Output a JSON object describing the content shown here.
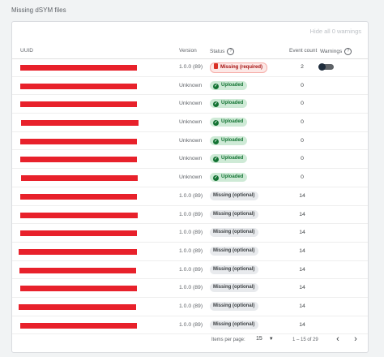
{
  "page": {
    "title": "Missing dSYM files"
  },
  "toolbar": {
    "hide_warnings_label": "Hide all 0 warnings"
  },
  "table": {
    "headers": {
      "uuid": "UUID",
      "version": "Version",
      "status": "Status",
      "event_count": "Event count",
      "warnings": "Warnings"
    },
    "rows": [
      {
        "version": "1.0.0 (89)",
        "status": "Missing (required)",
        "status_kind": "required",
        "event_count": "2",
        "has_warning_toggle": true
      },
      {
        "version": "Unknown",
        "status": "Uploaded",
        "status_kind": "uploaded",
        "event_count": "0"
      },
      {
        "version": "Unknown",
        "status": "Uploaded",
        "status_kind": "uploaded",
        "event_count": "0"
      },
      {
        "version": "Unknown",
        "status": "Uploaded",
        "status_kind": "uploaded",
        "event_count": "0"
      },
      {
        "version": "Unknown",
        "status": "Uploaded",
        "status_kind": "uploaded",
        "event_count": "0"
      },
      {
        "version": "Unknown",
        "status": "Uploaded",
        "status_kind": "uploaded",
        "event_count": "0"
      },
      {
        "version": "Unknown",
        "status": "Uploaded",
        "status_kind": "uploaded",
        "event_count": "0"
      },
      {
        "version": "1.0.0 (89)",
        "status": "Missing (optional)",
        "status_kind": "optional",
        "event_count": "14"
      },
      {
        "version": "1.0.0 (89)",
        "status": "Missing (optional)",
        "status_kind": "optional",
        "event_count": "14"
      },
      {
        "version": "1.0.0 (89)",
        "status": "Missing (optional)",
        "status_kind": "optional",
        "event_count": "14"
      },
      {
        "version": "1.0.0 (89)",
        "status": "Missing (optional)",
        "status_kind": "optional",
        "event_count": "14"
      },
      {
        "version": "1.0.0 (89)",
        "status": "Missing (optional)",
        "status_kind": "optional",
        "event_count": "14"
      },
      {
        "version": "1.0.0 (89)",
        "status": "Missing (optional)",
        "status_kind": "optional",
        "event_count": "14"
      },
      {
        "version": "1.0.0 (89)",
        "status": "Missing (optional)",
        "status_kind": "optional",
        "event_count": "14"
      },
      {
        "version": "1.0.0 (89)",
        "status": "Missing (optional)",
        "status_kind": "optional",
        "event_count": "14"
      }
    ]
  },
  "pagination": {
    "items_per_page_label": "Items per page:",
    "items_per_page_value": "15",
    "range_label": "1 – 15 of 29"
  },
  "colors": {
    "redaction": "#e8212b",
    "uploaded_bg": "#ceead6",
    "required_bg": "#fce8e6",
    "optional_bg": "#e8eaed"
  },
  "icons": {
    "status_help": "help-circle-icon",
    "warnings_help": "help-circle-icon",
    "uploaded": "check-circle-icon",
    "required": "file-icon",
    "dropdown": "chevron-down-icon",
    "prev": "chevron-left-icon",
    "next": "chevron-right-icon"
  }
}
